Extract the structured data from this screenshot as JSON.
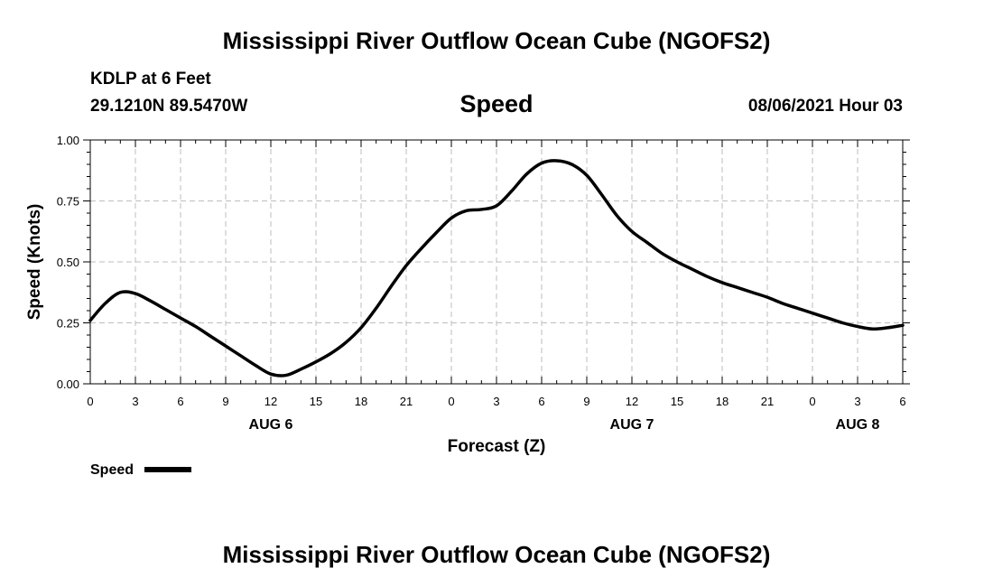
{
  "header": {
    "title": "Mississippi River Outflow Ocean Cube (NGOFS2)",
    "station": "KDLP at 6 Feet",
    "location": "29.1210N  89.5470W",
    "variable": "Speed",
    "timestamp": "08/06/2021 Hour 03"
  },
  "footer": {
    "title": "Mississippi River Outflow Ocean Cube (NGOFS2)"
  },
  "chart_data": {
    "type": "line",
    "xlabel": "Forecast (Z)",
    "ylabel": "Speed (Knots)",
    "x_unit": "hours from 00Z Aug 6",
    "xlim": [
      0,
      54
    ],
    "ylim": [
      0,
      1
    ],
    "yticks": [
      "0.00",
      "0.25",
      "0.50",
      "0.75",
      "1.00"
    ],
    "xticks": [
      "0",
      "3",
      "6",
      "9",
      "12",
      "15",
      "18",
      "21",
      "0",
      "3",
      "6",
      "9",
      "12",
      "15",
      "18",
      "21",
      "0",
      "3",
      "6"
    ],
    "day_labels": [
      {
        "label": "AUG 6",
        "x": 12
      },
      {
        "label": "AUG 7",
        "x": 36
      },
      {
        "label": "AUG 8",
        "x": 51
      }
    ],
    "grid": true,
    "legend": {
      "position": "bottom-left",
      "label": "Speed"
    },
    "series": [
      {
        "name": "Speed",
        "color": "#000000",
        "x": [
          0,
          1,
          2,
          3,
          4,
          5,
          6,
          7,
          8,
          9,
          10,
          11,
          12,
          13,
          14,
          15,
          16,
          17,
          18,
          19,
          20,
          21,
          22,
          23,
          24,
          25,
          26,
          27,
          28,
          29,
          30,
          31,
          32,
          33,
          34,
          35,
          36,
          37,
          38,
          39,
          40,
          41,
          42,
          43,
          44,
          45,
          46,
          47,
          48,
          49,
          50,
          51,
          52,
          53,
          54
        ],
        "values": [
          0.26,
          0.33,
          0.375,
          0.37,
          0.34,
          0.305,
          0.27,
          0.235,
          0.195,
          0.155,
          0.115,
          0.075,
          0.04,
          0.035,
          0.06,
          0.09,
          0.125,
          0.17,
          0.23,
          0.31,
          0.4,
          0.485,
          0.555,
          0.62,
          0.68,
          0.71,
          0.715,
          0.73,
          0.79,
          0.86,
          0.905,
          0.915,
          0.9,
          0.855,
          0.775,
          0.69,
          0.625,
          0.58,
          0.535,
          0.5,
          0.47,
          0.44,
          0.415,
          0.395,
          0.375,
          0.355,
          0.33,
          0.31,
          0.29,
          0.27,
          0.25,
          0.235,
          0.225,
          0.23,
          0.24
        ]
      }
    ]
  }
}
